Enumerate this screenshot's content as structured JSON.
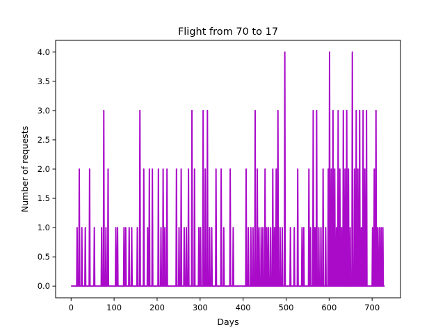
{
  "chart_data": {
    "type": "line",
    "title": "Flight from 70 to 17",
    "xlabel": "Days",
    "ylabel": "Number of requests",
    "xlim": [
      -36,
      766
    ],
    "ylim": [
      -0.2,
      4.2
    ],
    "xticks": [
      0,
      100,
      200,
      300,
      400,
      500,
      600,
      700
    ],
    "yticks": [
      "0.0",
      "0.5",
      "1.0",
      "1.5",
      "2.0",
      "2.5",
      "3.0",
      "3.5",
      "4.0"
    ],
    "grid": false,
    "legend": "none",
    "series": [
      {
        "color": "#a90bc9",
        "points": [
          [
            0,
            0
          ],
          [
            13,
            0
          ],
          [
            14,
            1
          ],
          [
            15,
            0
          ],
          [
            18,
            0
          ],
          [
            19,
            2
          ],
          [
            20,
            0
          ],
          [
            24,
            0
          ],
          [
            25,
            1
          ],
          [
            26,
            0
          ],
          [
            32,
            0
          ],
          [
            33,
            1
          ],
          [
            34,
            0
          ],
          [
            42,
            0
          ],
          [
            43,
            2
          ],
          [
            44,
            0
          ],
          [
            53,
            0
          ],
          [
            54,
            1
          ],
          [
            55,
            0
          ],
          [
            70,
            0
          ],
          [
            71,
            1
          ],
          [
            72,
            0
          ],
          [
            75,
            0
          ],
          [
            76,
            3
          ],
          [
            77,
            0
          ],
          [
            80,
            0
          ],
          [
            81,
            1
          ],
          [
            82,
            0
          ],
          [
            85,
            0
          ],
          [
            86,
            2
          ],
          [
            87,
            0
          ],
          [
            103,
            0
          ],
          [
            104,
            1
          ],
          [
            105,
            0
          ],
          [
            107,
            0
          ],
          [
            108,
            1
          ],
          [
            109,
            0
          ],
          [
            122,
            0
          ],
          [
            123,
            1
          ],
          [
            124,
            0
          ],
          [
            126,
            0
          ],
          [
            127,
            1
          ],
          [
            128,
            0
          ],
          [
            134,
            0
          ],
          [
            135,
            1
          ],
          [
            136,
            0
          ],
          [
            140,
            0
          ],
          [
            141,
            1
          ],
          [
            142,
            0
          ],
          [
            153,
            0
          ],
          [
            154,
            1
          ],
          [
            155,
            0
          ],
          [
            159,
            0
          ],
          [
            160,
            3
          ],
          [
            161,
            0
          ],
          [
            168,
            0
          ],
          [
            169,
            2
          ],
          [
            170,
            0
          ],
          [
            177,
            0
          ],
          [
            178,
            1
          ],
          [
            179,
            0
          ],
          [
            181,
            0
          ],
          [
            182,
            2
          ],
          [
            183,
            0
          ],
          [
            188,
            0
          ],
          [
            189,
            2
          ],
          [
            190,
            0
          ],
          [
            202,
            0
          ],
          [
            203,
            2
          ],
          [
            204,
            0
          ],
          [
            208,
            0
          ],
          [
            209,
            1
          ],
          [
            210,
            0
          ],
          [
            213,
            0
          ],
          [
            214,
            2
          ],
          [
            215,
            0
          ],
          [
            217,
            0
          ],
          [
            218,
            1
          ],
          [
            219,
            0
          ],
          [
            222,
            0
          ],
          [
            223,
            2
          ],
          [
            224,
            0
          ],
          [
            244,
            0
          ],
          [
            245,
            2
          ],
          [
            246,
            0
          ],
          [
            250,
            0
          ],
          [
            251,
            1
          ],
          [
            252,
            0
          ],
          [
            255,
            0
          ],
          [
            256,
            2
          ],
          [
            257,
            0
          ],
          [
            262,
            0
          ],
          [
            263,
            1
          ],
          [
            264,
            0
          ],
          [
            267,
            0
          ],
          [
            268,
            1
          ],
          [
            269,
            0
          ],
          [
            272,
            0
          ],
          [
            273,
            2
          ],
          [
            274,
            0
          ],
          [
            280,
            0
          ],
          [
            281,
            3
          ],
          [
            282,
            0
          ],
          [
            286,
            0
          ],
          [
            287,
            2
          ],
          [
            288,
            0
          ],
          [
            296,
            0
          ],
          [
            297,
            1
          ],
          [
            298,
            0
          ],
          [
            300,
            0
          ],
          [
            301,
            1
          ],
          [
            302,
            0
          ],
          [
            306,
            0
          ],
          [
            307,
            3
          ],
          [
            308,
            0
          ],
          [
            311,
            0
          ],
          [
            312,
            2
          ],
          [
            313,
            0
          ],
          [
            316,
            0
          ],
          [
            317,
            3
          ],
          [
            318,
            0
          ],
          [
            321,
            0
          ],
          [
            322,
            1
          ],
          [
            323,
            0
          ],
          [
            326,
            0
          ],
          [
            327,
            1
          ],
          [
            328,
            0
          ],
          [
            336,
            0
          ],
          [
            337,
            2
          ],
          [
            338,
            0
          ],
          [
            348,
            0
          ],
          [
            349,
            2
          ],
          [
            350,
            0
          ],
          [
            354,
            0
          ],
          [
            355,
            1
          ],
          [
            356,
            0
          ],
          [
            369,
            0
          ],
          [
            370,
            2
          ],
          [
            371,
            0
          ],
          [
            376,
            0
          ],
          [
            377,
            1
          ],
          [
            378,
            0
          ],
          [
            406,
            0
          ],
          [
            407,
            2
          ],
          [
            408,
            0
          ],
          [
            411,
            0
          ],
          [
            412,
            1
          ],
          [
            413,
            0
          ],
          [
            417,
            0
          ],
          [
            418,
            1
          ],
          [
            419,
            0
          ],
          [
            422,
            0
          ],
          [
            423,
            1
          ],
          [
            424,
            0
          ],
          [
            427,
            0
          ],
          [
            428,
            3
          ],
          [
            429,
            0
          ],
          [
            432,
            0
          ],
          [
            433,
            2
          ],
          [
            434,
            0
          ],
          [
            436,
            0
          ],
          [
            437,
            1
          ],
          [
            438,
            0
          ],
          [
            441,
            0
          ],
          [
            442,
            1
          ],
          [
            443,
            0
          ],
          [
            445,
            0
          ],
          [
            446,
            1
          ],
          [
            447,
            0
          ],
          [
            450,
            0
          ],
          [
            451,
            2
          ],
          [
            452,
            0
          ],
          [
            454,
            0
          ],
          [
            455,
            1
          ],
          [
            456,
            0
          ],
          [
            458,
            0
          ],
          [
            459,
            1
          ],
          [
            460,
            0
          ],
          [
            463,
            0
          ],
          [
            464,
            1
          ],
          [
            465,
            0
          ],
          [
            468,
            0
          ],
          [
            469,
            2
          ],
          [
            470,
            0
          ],
          [
            472,
            0
          ],
          [
            473,
            1
          ],
          [
            474,
            0
          ],
          [
            476,
            0
          ],
          [
            477,
            2
          ],
          [
            478,
            0
          ],
          [
            480,
            0
          ],
          [
            481,
            3
          ],
          [
            482,
            0
          ],
          [
            485,
            0
          ],
          [
            486,
            1
          ],
          [
            487,
            0
          ],
          [
            490,
            0
          ],
          [
            491,
            1
          ],
          [
            492,
            0
          ],
          [
            496,
            0
          ],
          [
            497,
            4
          ],
          [
            498,
            0
          ],
          [
            509,
            0
          ],
          [
            510,
            1
          ],
          [
            511,
            0
          ],
          [
            518,
            0
          ],
          [
            519,
            1
          ],
          [
            520,
            0
          ],
          [
            526,
            0
          ],
          [
            527,
            2
          ],
          [
            528,
            0
          ],
          [
            536,
            0
          ],
          [
            537,
            1
          ],
          [
            538,
            0
          ],
          [
            540,
            0
          ],
          [
            541,
            1
          ],
          [
            542,
            0
          ],
          [
            552,
            0
          ],
          [
            553,
            2
          ],
          [
            554,
            0
          ],
          [
            556,
            0
          ],
          [
            557,
            1
          ],
          [
            558,
            0
          ],
          [
            562,
            0
          ],
          [
            563,
            3
          ],
          [
            564,
            0
          ],
          [
            566,
            0
          ],
          [
            567,
            1
          ],
          [
            568,
            0
          ],
          [
            570,
            0
          ],
          [
            571,
            3
          ],
          [
            572,
            0
          ],
          [
            575,
            0
          ],
          [
            576,
            1
          ],
          [
            577,
            0
          ],
          [
            580,
            0
          ],
          [
            581,
            1
          ],
          [
            582,
            0
          ],
          [
            585,
            0
          ],
          [
            586,
            2
          ],
          [
            587,
            0
          ],
          [
            591,
            0
          ],
          [
            592,
            1
          ],
          [
            593,
            0
          ],
          [
            597,
            0
          ],
          [
            598,
            2
          ],
          [
            599,
            0
          ],
          [
            600,
            0
          ],
          [
            601,
            4
          ],
          [
            602,
            0
          ],
          [
            604,
            0
          ],
          [
            605,
            2
          ],
          [
            606,
            0
          ],
          [
            608,
            0
          ],
          [
            609,
            3
          ],
          [
            610,
            0
          ],
          [
            612,
            0
          ],
          [
            613,
            2
          ],
          [
            614,
            0
          ],
          [
            616,
            0
          ],
          [
            617,
            1
          ],
          [
            618,
            0
          ],
          [
            620,
            0
          ],
          [
            621,
            3
          ],
          [
            622,
            0
          ],
          [
            624,
            0
          ],
          [
            625,
            2
          ],
          [
            626,
            0
          ],
          [
            628,
            0
          ],
          [
            629,
            1
          ],
          [
            630,
            0
          ],
          [
            632,
            0
          ],
          [
            633,
            3
          ],
          [
            634,
            0
          ],
          [
            636,
            0
          ],
          [
            637,
            2
          ],
          [
            638,
            0
          ],
          [
            640,
            0
          ],
          [
            641,
            3
          ],
          [
            642,
            0
          ],
          [
            644,
            0
          ],
          [
            645,
            2
          ],
          [
            646,
            0
          ],
          [
            648,
            0
          ],
          [
            649,
            1
          ],
          [
            650,
            0
          ],
          [
            653,
            0
          ],
          [
            654,
            4
          ],
          [
            655,
            0
          ],
          [
            658,
            0
          ],
          [
            659,
            2
          ],
          [
            660,
            0
          ],
          [
            662,
            0
          ],
          [
            663,
            3
          ],
          [
            664,
            0
          ],
          [
            666,
            0
          ],
          [
            667,
            2
          ],
          [
            668,
            0
          ],
          [
            670,
            0
          ],
          [
            671,
            3
          ],
          [
            672,
            0
          ],
          [
            674,
            0
          ],
          [
            675,
            1
          ],
          [
            676,
            0
          ],
          [
            678,
            0
          ],
          [
            679,
            3
          ],
          [
            680,
            0
          ],
          [
            682,
            0
          ],
          [
            683,
            2
          ],
          [
            684,
            0
          ],
          [
            686,
            0
          ],
          [
            687,
            3
          ],
          [
            688,
            0
          ],
          [
            700,
            0
          ],
          [
            701,
            1
          ],
          [
            702,
            0
          ],
          [
            704,
            0
          ],
          [
            705,
            2
          ],
          [
            706,
            0
          ],
          [
            708,
            0
          ],
          [
            709,
            3
          ],
          [
            710,
            0
          ],
          [
            712,
            0
          ],
          [
            713,
            1
          ],
          [
            714,
            0
          ],
          [
            716,
            0
          ],
          [
            717,
            1
          ],
          [
            718,
            0
          ],
          [
            720,
            0
          ],
          [
            721,
            1
          ],
          [
            722,
            0
          ],
          [
            724,
            0
          ],
          [
            725,
            1
          ],
          [
            726,
            0
          ],
          [
            729,
            0
          ]
        ]
      }
    ]
  }
}
